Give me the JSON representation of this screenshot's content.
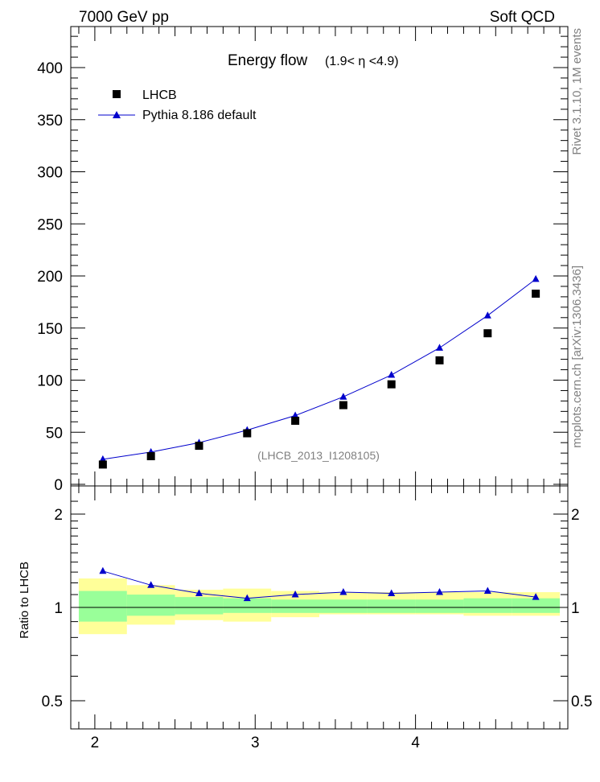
{
  "header": {
    "left": "7000 GeV pp",
    "right": "Soft QCD"
  },
  "side": {
    "rivet": "Rivet 3.1.10,  1M events",
    "mcplots": "mcplots.cern.ch [arXiv:1306.3436]"
  },
  "chart_data": [
    {
      "type": "scatter",
      "title": "Energy flow",
      "title_suffix": "(1.9< η <4.9)",
      "annotation": "(LHCB_2013_I1208105)",
      "xlim": [
        1.85,
        4.95
      ],
      "ylim": [
        0,
        440
      ],
      "yticks": [
        0,
        50,
        100,
        150,
        200,
        250,
        300,
        350,
        400
      ],
      "legend_position": "top-left",
      "series": [
        {
          "name": "LHCB",
          "marker": "square",
          "color": "#000000",
          "x": [
            2.05,
            2.35,
            2.65,
            2.95,
            3.25,
            3.55,
            3.85,
            4.15,
            4.45,
            4.75
          ],
          "y": [
            19,
            27,
            37,
            49,
            61,
            76,
            96,
            119,
            145,
            183
          ]
        },
        {
          "name": "Pythia 8.186 default",
          "marker": "triangle",
          "color": "#0000cc",
          "x": [
            2.05,
            2.35,
            2.65,
            2.95,
            3.25,
            3.55,
            3.85,
            4.15,
            4.45,
            4.75
          ],
          "y": [
            24,
            31,
            40,
            52,
            66,
            84,
            105,
            131,
            162,
            197
          ]
        }
      ]
    },
    {
      "type": "line",
      "ylabel": "Ratio to LHCB",
      "xlim": [
        1.85,
        4.95
      ],
      "ylim": [
        0.35,
        2.3
      ],
      "yticks": [
        0.5,
        1,
        2
      ],
      "xticks": [
        2,
        3,
        4
      ],
      "reference": 1,
      "bands": {
        "bin_edges": [
          1.9,
          2.2,
          2.5,
          2.8,
          3.1,
          3.4,
          3.7,
          4.0,
          4.3,
          4.6,
          4.9
        ],
        "green_low": [
          0.9,
          0.94,
          0.95,
          0.96,
          0.96,
          0.96,
          0.96,
          0.96,
          0.96,
          0.96
        ],
        "green_high": [
          1.13,
          1.1,
          1.08,
          1.07,
          1.06,
          1.06,
          1.06,
          1.06,
          1.07,
          1.07
        ],
        "yellow_low": [
          0.82,
          0.88,
          0.91,
          0.9,
          0.93,
          0.95,
          0.95,
          0.95,
          0.94,
          0.94
        ],
        "yellow_high": [
          1.24,
          1.18,
          1.14,
          1.15,
          1.13,
          1.12,
          1.12,
          1.12,
          1.12,
          1.12
        ]
      },
      "series": [
        {
          "name": "Pythia 8.186 default",
          "color": "#0000cc",
          "x": [
            2.05,
            2.35,
            2.65,
            2.95,
            3.25,
            3.55,
            3.85,
            4.15,
            4.45,
            4.75
          ],
          "y": [
            1.31,
            1.18,
            1.11,
            1.07,
            1.1,
            1.12,
            1.11,
            1.12,
            1.13,
            1.08
          ]
        }
      ]
    }
  ]
}
